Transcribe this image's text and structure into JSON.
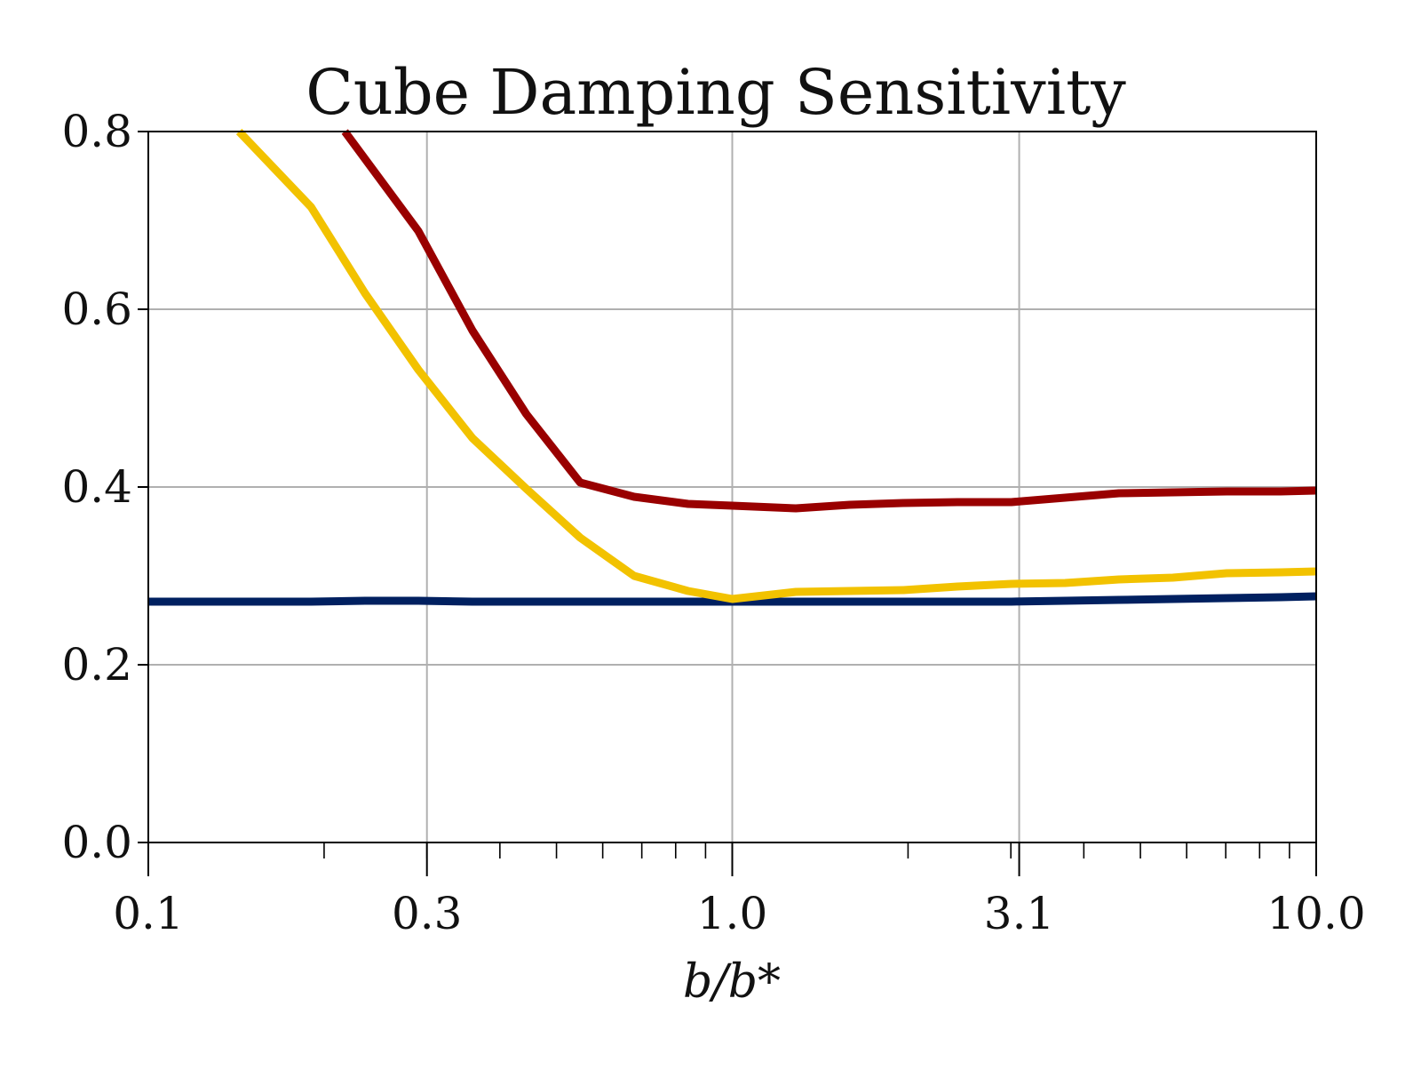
{
  "chart_data": {
    "type": "line",
    "title": "Cube Damping Sensitivity",
    "xlabel": "b/b*",
    "ylabel": "",
    "x_scale": "log",
    "xlim": [
      0.1,
      10.0
    ],
    "ylim": [
      0.0,
      0.8
    ],
    "grid": true,
    "xticks": [
      0.1,
      0.3,
      1.0,
      3.1,
      10.0
    ],
    "xtick_labels": [
      "0.1",
      "0.3",
      "1.0",
      "3.1",
      "10.0"
    ],
    "yticks": [
      0.0,
      0.2,
      0.4,
      0.6,
      0.8
    ],
    "ytick_labels": [
      "0.0",
      "0.2",
      "0.4",
      "0.6",
      "0.8"
    ],
    "series": [
      {
        "color": "#002060",
        "x": [
          0.1,
          0.124,
          0.153,
          0.19,
          0.235,
          0.29,
          0.359,
          0.444,
          0.549,
          0.679,
          0.84,
          1.0,
          1.285,
          1.589,
          1.965,
          2.43,
          3.005,
          3.716,
          4.596,
          5.683,
          7.028,
          8.692,
          10.0
        ],
        "y": [
          0.271,
          0.271,
          0.271,
          0.271,
          0.272,
          0.272,
          0.271,
          0.271,
          0.271,
          0.271,
          0.271,
          0.271,
          0.271,
          0.271,
          0.271,
          0.271,
          0.271,
          0.272,
          0.273,
          0.274,
          0.275,
          0.276,
          0.277
        ]
      },
      {
        "color": "#F2C200",
        "x": [
          0.143,
          0.19,
          0.235,
          0.29,
          0.359,
          0.444,
          0.549,
          0.679,
          0.84,
          1.0,
          1.285,
          1.589,
          1.965,
          2.43,
          3.005,
          3.716,
          4.596,
          5.683,
          7.028,
          8.692,
          10.0
        ],
        "y": [
          0.8,
          0.715,
          0.618,
          0.532,
          0.455,
          0.398,
          0.343,
          0.3,
          0.283,
          0.274,
          0.282,
          0.283,
          0.284,
          0.288,
          0.291,
          0.292,
          0.296,
          0.298,
          0.303,
          0.304,
          0.305
        ]
      },
      {
        "color": "#990000",
        "x": [
          0.217,
          0.29,
          0.359,
          0.444,
          0.549,
          0.679,
          0.84,
          1.0,
          1.285,
          1.589,
          1.965,
          2.43,
          3.005,
          3.716,
          4.596,
          5.683,
          7.028,
          8.692,
          10.0
        ],
        "y": [
          0.8,
          0.688,
          0.576,
          0.482,
          0.405,
          0.389,
          0.381,
          0.379,
          0.376,
          0.38,
          0.382,
          0.383,
          0.383,
          0.388,
          0.393,
          0.394,
          0.395,
          0.395,
          0.396
        ]
      }
    ]
  }
}
